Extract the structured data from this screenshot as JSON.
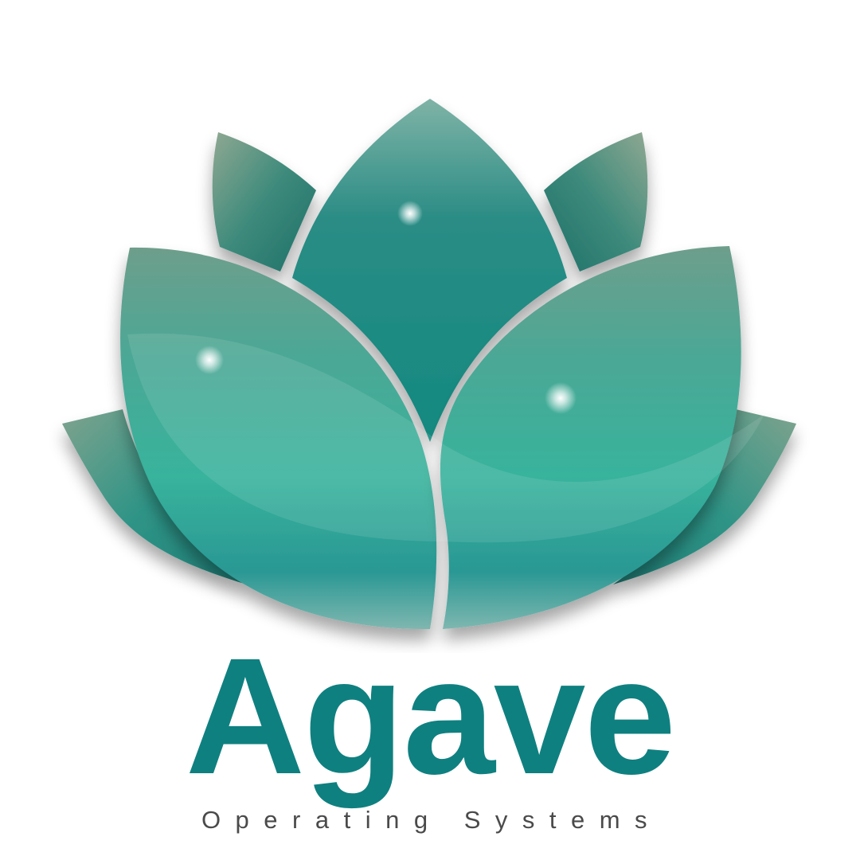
{
  "logo": {
    "brand_name": "Agave",
    "tagline": "Operating Systems",
    "icon": "lotus-flower-icon",
    "colors": {
      "brand_teal": "#0f8080",
      "petal_dark": "#1b7a74",
      "petal_mid": "#2a9c8f",
      "petal_light": "#3bb59d",
      "tagline_gray": "#4a4a4a",
      "background": "#ffffff"
    }
  }
}
